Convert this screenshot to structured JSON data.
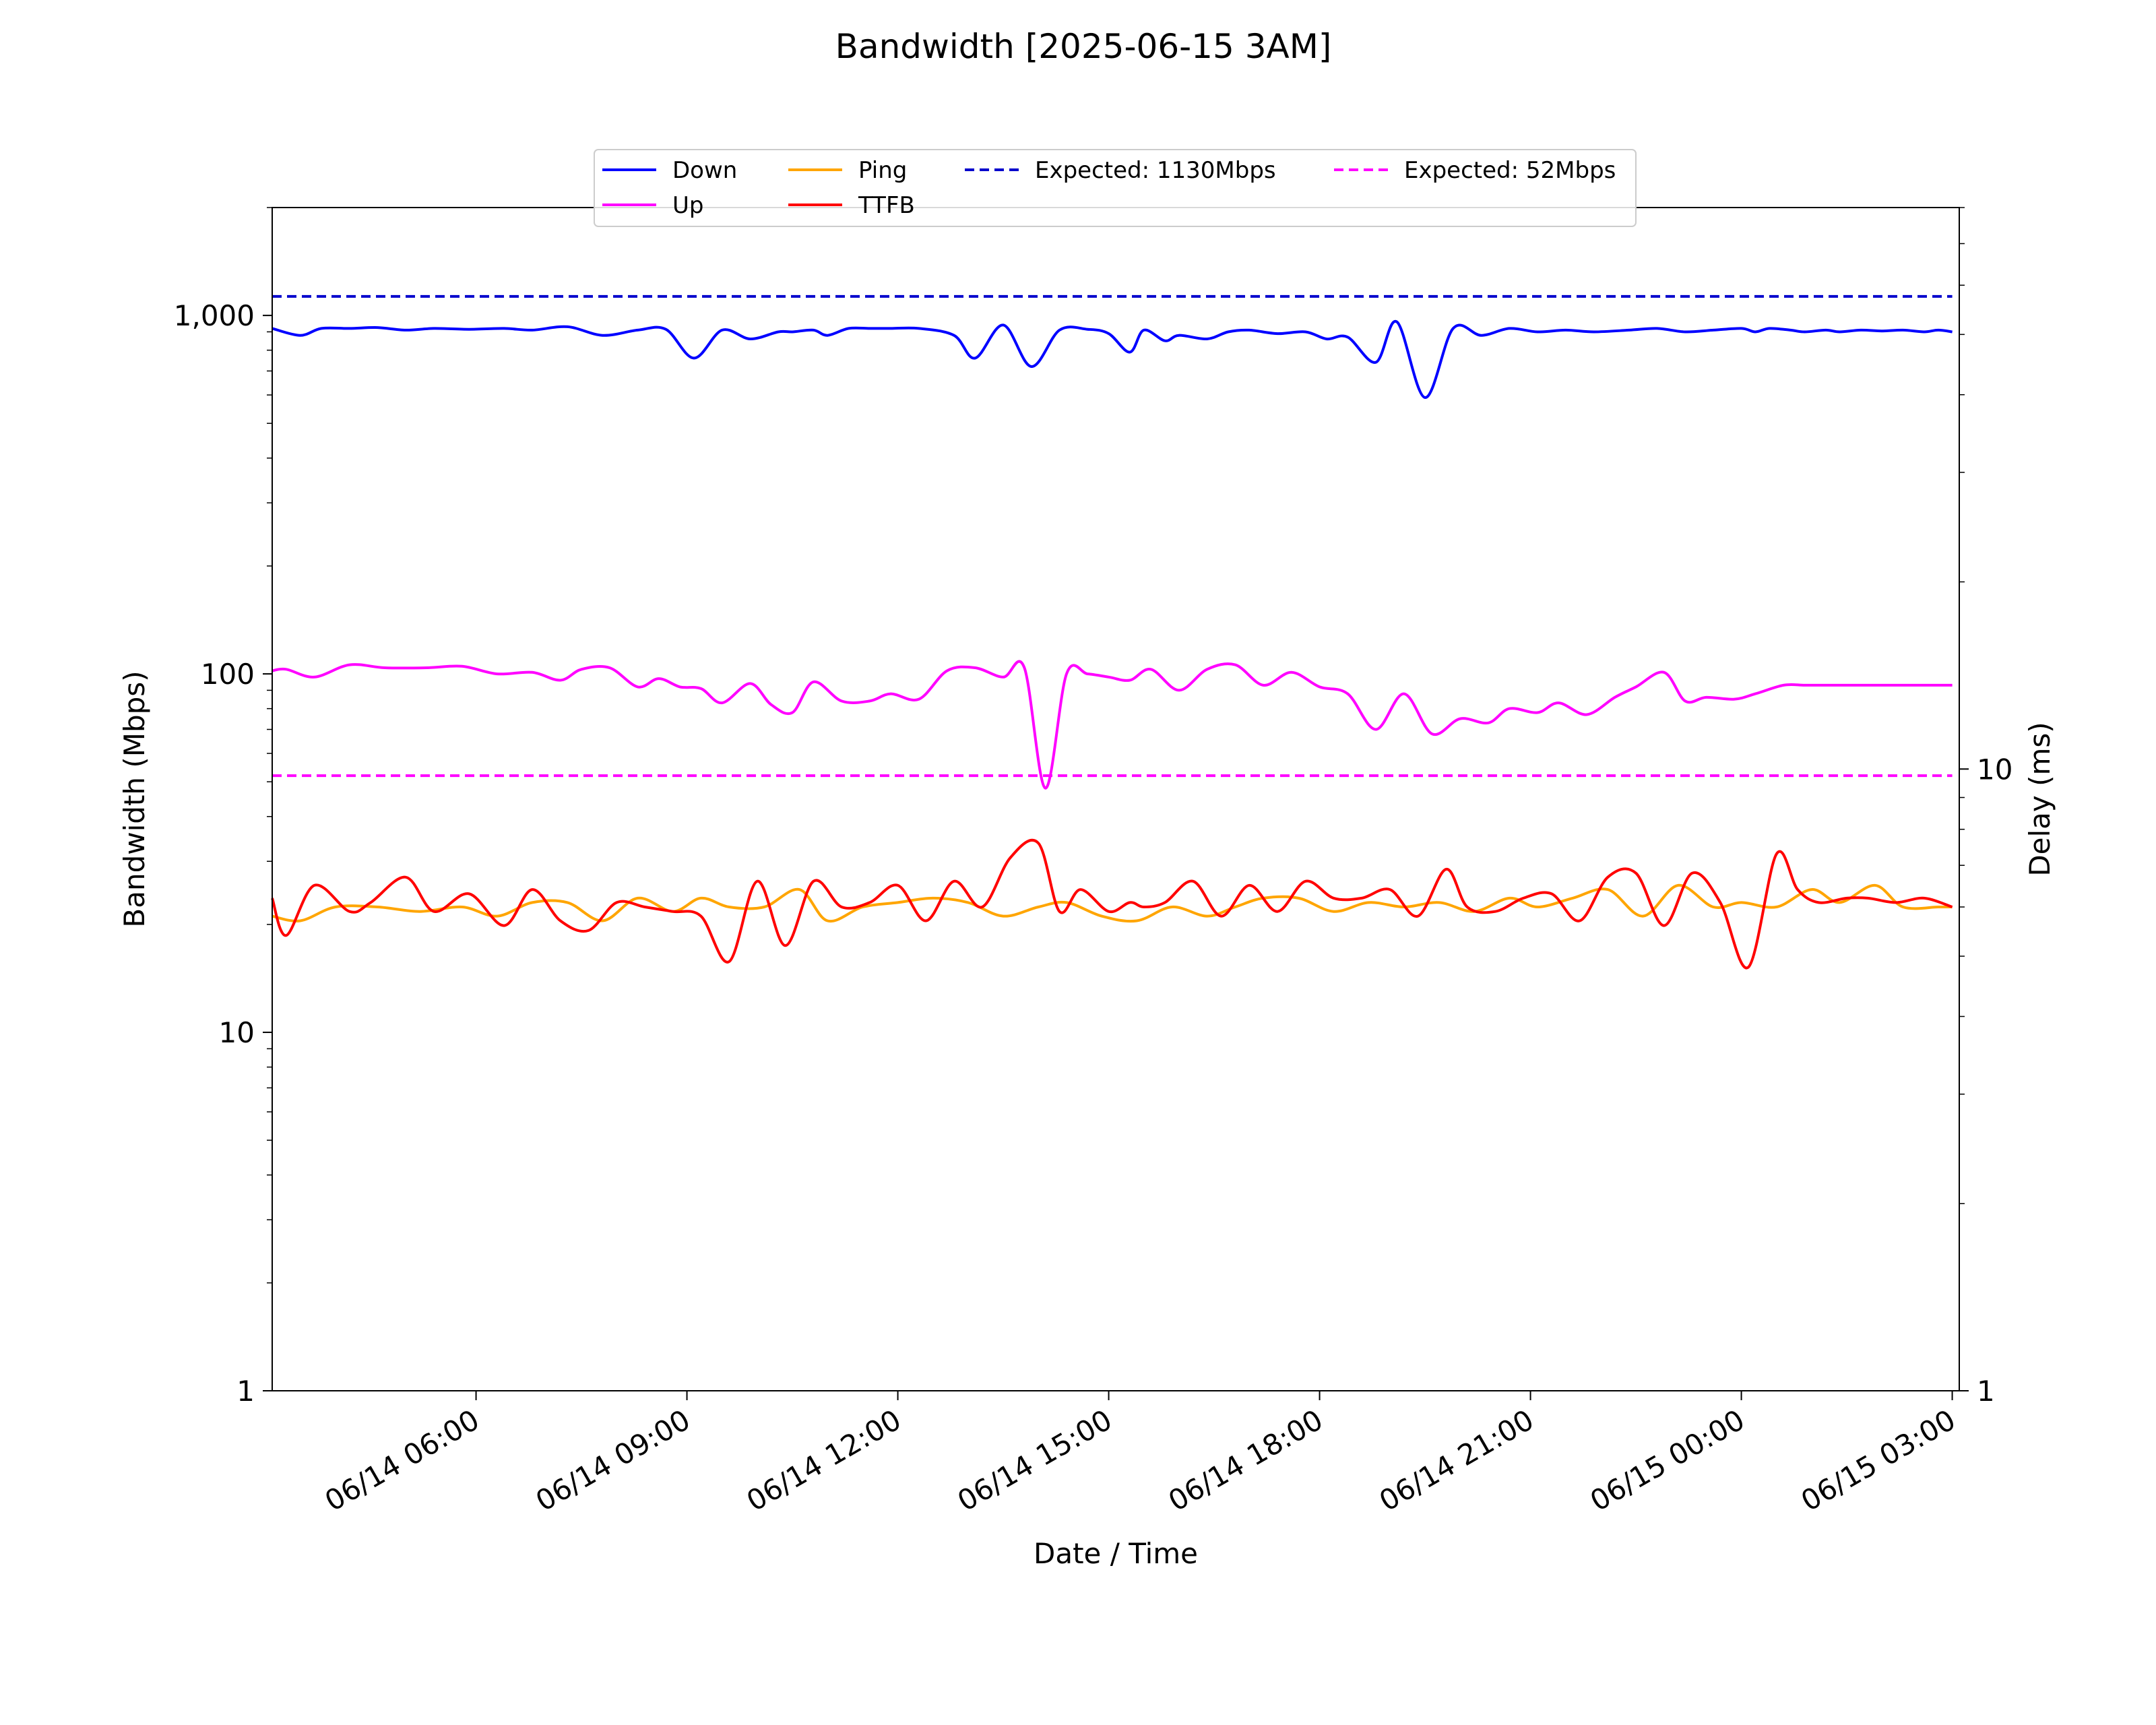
{
  "chart_data": {
    "type": "line",
    "title": "Bandwidth [2025-06-15 3AM]",
    "xlabel": "Date / Time",
    "ylabel": "Bandwidth (Mbps)",
    "y2label": "Delay (ms)",
    "yscale": "log",
    "ylim": [
      1,
      2000
    ],
    "y2scale": "log",
    "y2lim": [
      1,
      80
    ],
    "grid": false,
    "legend_position": "top-center",
    "x_ticks": [
      "06/14 06:00",
      "06/14 09:00",
      "06/14 12:00",
      "06/14 15:00",
      "06/14 18:00",
      "06/14 21:00",
      "06/15 00:00",
      "06/15 03:00"
    ],
    "x_tick_positions_hours": [
      6,
      9,
      12,
      15,
      18,
      21,
      24,
      27
    ],
    "xlim_hours": [
      3.1,
      27.1
    ],
    "y_ticks": [
      {
        "value": 1,
        "label": "1"
      },
      {
        "value": 10,
        "label": "10"
      },
      {
        "value": 100,
        "label": "100"
      },
      {
        "value": 1000,
        "label": "1,000"
      }
    ],
    "y2_ticks": [
      {
        "value": 1,
        "label": "1"
      },
      {
        "value": 10,
        "label": "10"
      }
    ],
    "series": [
      {
        "name": "Down",
        "axis": "left",
        "color": "#0000ff",
        "style": "solid",
        "x": [
          3.1,
          3.5,
          3.8,
          4.2,
          4.6,
          5.0,
          5.4,
          5.9,
          6.4,
          6.8,
          7.3,
          7.8,
          8.3,
          8.7,
          9.1,
          9.5,
          9.9,
          10.3,
          10.5,
          10.8,
          11.0,
          11.3,
          11.6,
          11.9,
          12.3,
          12.8,
          13.1,
          13.5,
          13.9,
          14.3,
          14.7,
          15.0,
          15.3,
          15.5,
          15.8,
          16.0,
          16.4,
          16.7,
          17.0,
          17.4,
          17.8,
          18.1,
          18.4,
          18.8,
          19.1,
          19.5,
          19.9,
          20.3,
          20.7,
          21.1,
          21.5,
          21.9,
          22.4,
          22.8,
          23.2,
          23.6,
          24.0,
          24.2,
          24.4,
          24.7,
          24.9,
          25.2,
          25.4,
          25.7,
          26.0,
          26.3,
          26.6,
          26.8,
          27.0
        ],
        "y": [
          920,
          880,
          920,
          920,
          925,
          910,
          920,
          915,
          920,
          910,
          930,
          880,
          910,
          915,
          760,
          910,
          860,
          900,
          900,
          910,
          880,
          920,
          920,
          920,
          920,
          880,
          760,
          940,
          720,
          910,
          915,
          890,
          790,
          910,
          850,
          880,
          860,
          900,
          910,
          890,
          900,
          860,
          870,
          740,
          960,
          590,
          920,
          880,
          920,
          900,
          910,
          900,
          910,
          920,
          900,
          910,
          920,
          900,
          920,
          910,
          900,
          910,
          900,
          910,
          905,
          910,
          900,
          910,
          900
        ]
      },
      {
        "name": "Up",
        "axis": "left",
        "color": "#ff00ff",
        "style": "solid",
        "x": [
          3.1,
          3.3,
          3.7,
          4.2,
          4.7,
          5.3,
          5.8,
          6.3,
          6.8,
          7.2,
          7.5,
          7.9,
          8.3,
          8.6,
          8.9,
          9.2,
          9.5,
          9.9,
          10.2,
          10.5,
          10.8,
          11.2,
          11.6,
          11.9,
          12.3,
          12.7,
          13.1,
          13.5,
          13.8,
          14.1,
          14.4,
          14.7,
          15.0,
          15.3,
          15.6,
          16.0,
          16.4,
          16.8,
          17.2,
          17.6,
          18.0,
          18.4,
          18.8,
          19.2,
          19.6,
          20.0,
          20.4,
          20.7,
          21.1,
          21.4,
          21.8,
          22.2,
          22.5,
          22.9,
          23.2,
          23.5,
          23.9,
          24.2,
          24.6,
          24.9,
          25.2,
          25.5,
          25.8,
          26.2,
          26.6,
          27.0
        ],
        "y": [
          102,
          103,
          98,
          106,
          104,
          104,
          105,
          100,
          101,
          96,
          103,
          104,
          92,
          97,
          92,
          91,
          83,
          94,
          82,
          78,
          95,
          84,
          84,
          88,
          85,
          102,
          104,
          98,
          104,
          48,
          100,
          100,
          98,
          96,
          103,
          90,
          103,
          106,
          93,
          101,
          92,
          88,
          70,
          88,
          68,
          75,
          73,
          80,
          78,
          83,
          77,
          86,
          92,
          101,
          84,
          86,
          85,
          88,
          93,
          93,
          93,
          93,
          93,
          93,
          93,
          93
        ]
      },
      {
        "name": "Ping",
        "axis": "right",
        "color": "#ffa500",
        "style": "solid",
        "x": [
          3.1,
          3.5,
          4.0,
          4.6,
          5.2,
          5.8,
          6.3,
          6.8,
          7.3,
          7.8,
          8.3,
          8.8,
          9.2,
          9.6,
          10.1,
          10.6,
          11.0,
          11.5,
          12.0,
          12.5,
          13.0,
          13.5,
          14.0,
          14.4,
          14.9,
          15.4,
          15.9,
          16.4,
          16.8,
          17.2,
          17.7,
          18.2,
          18.7,
          19.2,
          19.7,
          20.2,
          20.7,
          21.1,
          21.6,
          22.1,
          22.6,
          23.1,
          23.6,
          24.0,
          24.5,
          25.0,
          25.4,
          25.9,
          26.3,
          26.8,
          27.0
        ],
        "y": [
          5.8,
          5.7,
          6.0,
          6.0,
          5.9,
          6.0,
          5.8,
          6.1,
          6.1,
          5.7,
          6.2,
          5.9,
          6.2,
          6.0,
          6.0,
          6.4,
          5.7,
          6.0,
          6.1,
          6.2,
          6.1,
          5.8,
          6.0,
          6.1,
          5.8,
          5.7,
          6.0,
          5.8,
          6.0,
          6.2,
          6.2,
          5.9,
          6.1,
          6.0,
          6.1,
          5.9,
          6.2,
          6.0,
          6.2,
          6.4,
          5.8,
          6.5,
          6.0,
          6.1,
          6.0,
          6.4,
          6.1,
          6.5,
          6.0,
          6.0,
          6.0
        ]
      },
      {
        "name": "TTFB",
        "axis": "right",
        "color": "#ff0000",
        "style": "solid",
        "x": [
          3.1,
          3.3,
          3.7,
          4.2,
          4.5,
          5.0,
          5.4,
          5.9,
          6.4,
          6.8,
          7.2,
          7.6,
          8.0,
          8.4,
          8.8,
          9.2,
          9.6,
          10.0,
          10.4,
          10.8,
          11.2,
          11.6,
          12.0,
          12.4,
          12.8,
          13.2,
          13.6,
          14.0,
          14.3,
          14.6,
          15.0,
          15.3,
          15.5,
          15.8,
          16.2,
          16.6,
          17.0,
          17.4,
          17.8,
          18.2,
          18.6,
          19.0,
          19.4,
          19.8,
          20.1,
          20.5,
          20.9,
          21.3,
          21.7,
          22.1,
          22.5,
          22.9,
          23.3,
          23.7,
          24.1,
          24.5,
          24.8,
          25.1,
          25.5,
          25.8,
          26.2,
          26.6,
          27.0
        ],
        "y": [
          6.2,
          5.4,
          6.5,
          5.9,
          6.1,
          6.7,
          5.9,
          6.3,
          5.6,
          6.4,
          5.7,
          5.5,
          6.1,
          6.0,
          5.9,
          5.8,
          4.9,
          6.6,
          5.2,
          6.6,
          6.0,
          6.1,
          6.5,
          5.7,
          6.6,
          6.0,
          7.2,
          7.6,
          5.9,
          6.4,
          5.9,
          6.1,
          6.0,
          6.1,
          6.6,
          5.8,
          6.5,
          5.9,
          6.6,
          6.2,
          6.2,
          6.4,
          5.8,
          6.9,
          6.0,
          5.9,
          6.2,
          6.3,
          5.7,
          6.7,
          6.8,
          5.6,
          6.8,
          6.1,
          4.8,
          7.3,
          6.4,
          6.1,
          6.2,
          6.2,
          6.1,
          6.2,
          6.0
        ]
      },
      {
        "name": "Expected: 1130Mbps",
        "axis": "left",
        "color": "#0000cc",
        "style": "dashed",
        "x": [
          3.1,
          27.0
        ],
        "y": [
          1130,
          1130
        ]
      },
      {
        "name": "Expected: 52Mbps",
        "axis": "left",
        "color": "#ff00ff",
        "style": "dashed",
        "x": [
          3.1,
          27.0
        ],
        "y": [
          52,
          52
        ]
      }
    ],
    "legend_order": [
      "Down",
      "Up",
      "Ping",
      "TTFB",
      "Expected: 1130Mbps",
      "Expected: 52Mbps"
    ]
  }
}
